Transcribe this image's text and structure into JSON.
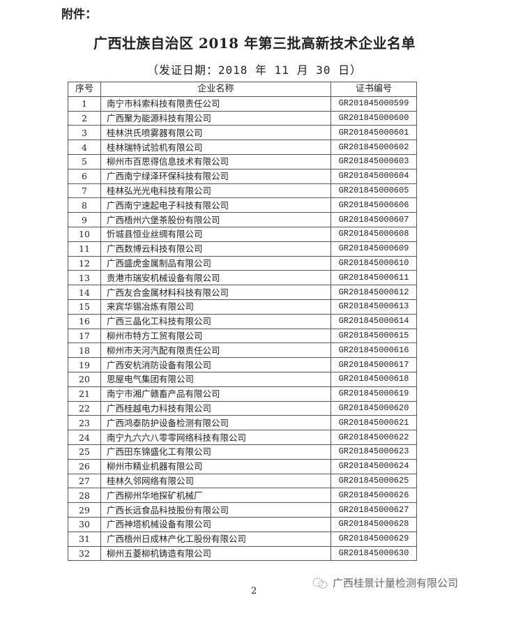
{
  "attachment_label": "附件：",
  "title": "广西壮族自治区 2018 年第三批高新技术企业名单",
  "subtitle": "（发证日期：2018 年 11 月 30 日）",
  "table": {
    "headers": [
      "序号",
      "企业名称",
      "证书编号"
    ],
    "rows": [
      [
        "1",
        "南宁市科索科技有限责任公司",
        "GR201845000599"
      ],
      [
        "2",
        "广西聚为能源科技有限公司",
        "GR201845000600"
      ],
      [
        "3",
        "桂林洪氏喷雾器有限公司",
        "GR201845000601"
      ],
      [
        "4",
        "桂林瑞特试验机有限公司",
        "GR201845000602"
      ],
      [
        "5",
        "柳州市百思得信息技术有限公司",
        "GR201845000603"
      ],
      [
        "6",
        "广西南宁绿泽环保科技有限公司",
        "GR201845000604"
      ],
      [
        "7",
        "桂林弘光光电科技有限公司",
        "GR201845000605"
      ],
      [
        "8",
        "广西南宁速起电子科技有限公司",
        "GR201845000606"
      ],
      [
        "9",
        "广西梧州六堡茶股份有限公司",
        "GR201845000607"
      ],
      [
        "10",
        "忻城县恒业丝绸有限公司",
        "GR201845000608"
      ],
      [
        "11",
        "广西数博云科技有限公司",
        "GR201845000609"
      ],
      [
        "12",
        "广西盛虎金属制品有限公司",
        "GR201845000610"
      ],
      [
        "13",
        "贵港市瑞安机械设备有限公司",
        "GR201845000611"
      ],
      [
        "14",
        "广西友合金属材料科技有限公司",
        "GR201845000612"
      ],
      [
        "15",
        "来宾华锡冶炼有限公司",
        "GR201845000613"
      ],
      [
        "16",
        "广西三晶化工科技有限公司",
        "GR201845000614"
      ],
      [
        "17",
        "柳州市特方工贸有限公司",
        "GR201845000615"
      ],
      [
        "18",
        "柳州市天河汽配有限责任公司",
        "GR201845000616"
      ],
      [
        "19",
        "广西安杭消防设备有限公司",
        "GR201845000617"
      ],
      [
        "20",
        "思屋电气集团有限公司",
        "GR201845000618"
      ],
      [
        "21",
        "南宁市湘广赣畜产品有限公司",
        "GR201845000619"
      ],
      [
        "22",
        "广西桂越电力科技有限公司",
        "GR201845000620"
      ],
      [
        "23",
        "广西鸿泰防护设备检测有限公司",
        "GR201845000621"
      ],
      [
        "24",
        "南宁九六六八零零网络科技有限公司",
        "GR201845000622"
      ],
      [
        "25",
        "广西田东锦盛化工有限公司",
        "GR201845000623"
      ],
      [
        "26",
        "柳州市精业机器有限公司",
        "GR201845000624"
      ],
      [
        "27",
        "桂林久邻网络有限公司",
        "GR201845000625"
      ],
      [
        "28",
        "广西柳州华地探矿机械厂",
        "GR201845000626"
      ],
      [
        "29",
        "广西长远食品科技股份有限公司",
        "GR201845000627"
      ],
      [
        "30",
        "广西神塔机械设备有限公司",
        "GR201845000628"
      ],
      [
        "31",
        "广西梧州日成林产化工股份有限公司",
        "GR201845000629"
      ],
      [
        "32",
        "柳州五菱柳机铸造有限公司",
        "GR201845000630"
      ]
    ]
  },
  "page_number": "2",
  "watermark": {
    "text": "广西桂景计量检测有限公司",
    "icon": "wechat-icon"
  }
}
